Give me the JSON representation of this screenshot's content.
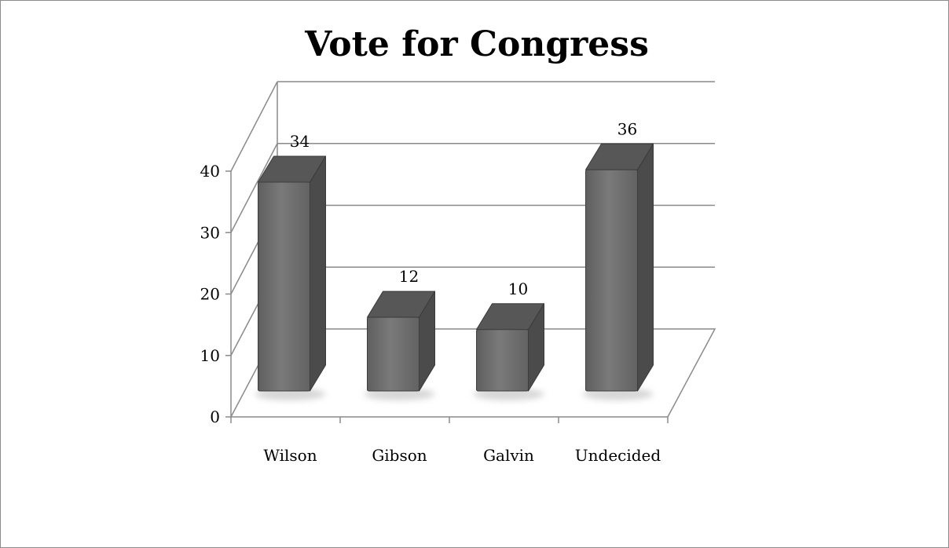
{
  "chart_data": {
    "type": "bar",
    "style": "3d-column",
    "title": "Vote for Congress",
    "categories": [
      "Wilson",
      "Gibson",
      "Galvin",
      "Undecided"
    ],
    "values": [
      34,
      12,
      10,
      36
    ],
    "data_labels": [
      "34",
      "12",
      "10",
      "36"
    ],
    "ylim": [
      0,
      40
    ],
    "yticks": [
      "0",
      "10",
      "20",
      "30",
      "40"
    ],
    "grid": true,
    "legend": "none",
    "bar_color": "#6e6e6e"
  }
}
